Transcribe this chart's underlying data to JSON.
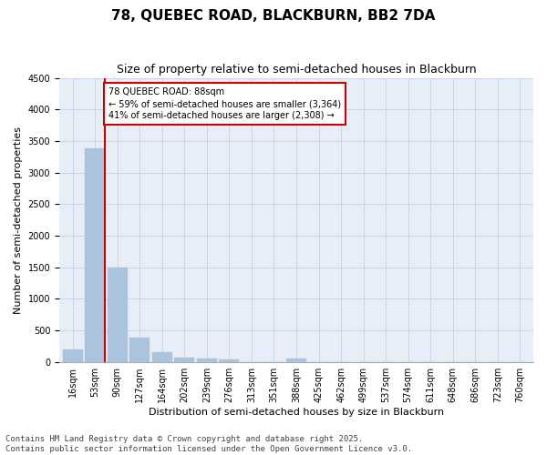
{
  "title": "78, QUEBEC ROAD, BLACKBURN, BB2 7DA",
  "subtitle": "Size of property relative to semi-detached houses in Blackburn",
  "xlabel": "Distribution of semi-detached houses by size in Blackburn",
  "ylabel": "Number of semi-detached properties",
  "categories": [
    "16sqm",
    "53sqm",
    "90sqm",
    "127sqm",
    "164sqm",
    "202sqm",
    "239sqm",
    "276sqm",
    "313sqm",
    "351sqm",
    "388sqm",
    "425sqm",
    "462sqm",
    "499sqm",
    "537sqm",
    "574sqm",
    "611sqm",
    "648sqm",
    "686sqm",
    "723sqm",
    "760sqm"
  ],
  "bar_values": [
    200,
    3380,
    1500,
    380,
    155,
    75,
    50,
    40,
    0,
    0,
    60,
    0,
    0,
    0,
    0,
    0,
    0,
    0,
    0,
    0,
    0
  ],
  "bar_color": "#aac4de",
  "bar_edge_color": "#aac4de",
  "highlight_line_color": "#cc0000",
  "annotation_text": "78 QUEBEC ROAD: 88sqm\n← 59% of semi-detached houses are smaller (3,364)\n41% of semi-detached houses are larger (2,308) →",
  "annotation_box_color": "#cc0000",
  "ylim": [
    0,
    4500
  ],
  "yticks": [
    0,
    500,
    1000,
    1500,
    2000,
    2500,
    3000,
    3500,
    4000,
    4500
  ],
  "grid_color": "#c8d4e8",
  "bg_color": "#e8eef8",
  "footer": "Contains HM Land Registry data © Crown copyright and database right 2025.\nContains public sector information licensed under the Open Government Licence v3.0.",
  "title_fontsize": 11,
  "subtitle_fontsize": 9,
  "axis_label_fontsize": 8,
  "tick_fontsize": 7,
  "footer_fontsize": 6.5
}
